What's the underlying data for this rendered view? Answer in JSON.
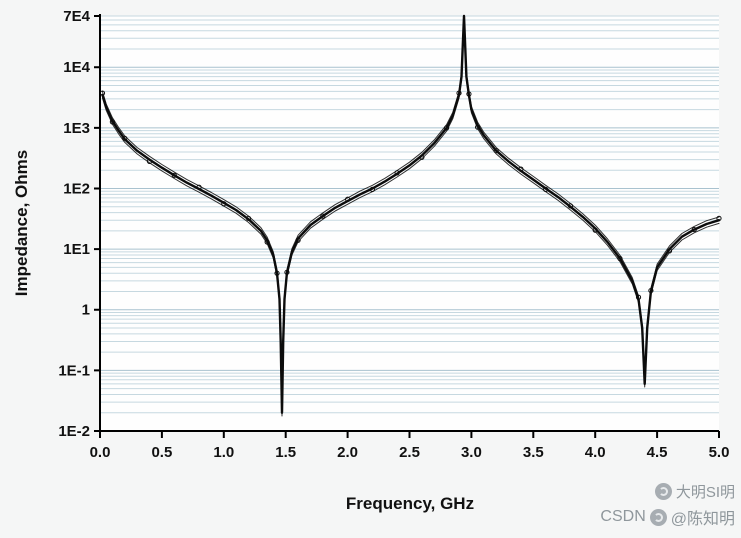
{
  "figure": {
    "y_axis_title": "Impedance, Ohms",
    "x_axis_title": "Frequency, GHz"
  },
  "watermarks": {
    "upper_text": "大明SI明",
    "lower_prefix": "CSDN",
    "lower_handle": "@陈知明"
  },
  "colors": {
    "curve": "#0c0c0c",
    "grid_minor": "#c6d8e0",
    "grid_major": "#a9c2cf",
    "axis": "#000000",
    "plot_background": "#fefefe",
    "watermark": "#8f979c"
  },
  "chart_data": {
    "type": "line",
    "title": "",
    "xlabel": "Frequency, GHz",
    "ylabel": "Impedance, Ohms",
    "xlim": [
      0,
      5
    ],
    "ylim": [
      0.01,
      70000
    ],
    "y_scale": "log",
    "grid": {
      "horizontal_minor": true,
      "vertical": false,
      "legend": "none"
    },
    "x_ticks": [
      {
        "v": 0.0,
        "label": "0.0"
      },
      {
        "v": 0.5,
        "label": "0.5"
      },
      {
        "v": 1.0,
        "label": "1.0"
      },
      {
        "v": 1.5,
        "label": "1.5"
      },
      {
        "v": 2.0,
        "label": "2.0"
      },
      {
        "v": 2.5,
        "label": "2.5"
      },
      {
        "v": 3.0,
        "label": "3.0"
      },
      {
        "v": 3.5,
        "label": "3.5"
      },
      {
        "v": 4.0,
        "label": "4.0"
      },
      {
        "v": 4.5,
        "label": "4.5"
      },
      {
        "v": 5.0,
        "label": "5.0"
      }
    ],
    "y_ticks": [
      {
        "v": 70000,
        "label": "7E4"
      },
      {
        "v": 10000,
        "label": "1E4"
      },
      {
        "v": 1000,
        "label": "1E3"
      },
      {
        "v": 100,
        "label": "1E2"
      },
      {
        "v": 10,
        "label": "1E1"
      },
      {
        "v": 1,
        "label": "1"
      },
      {
        "v": 0.1,
        "label": "1E-1"
      },
      {
        "v": 0.01,
        "label": "1E-2"
      }
    ],
    "features": {
      "series_resonance_nulls_GHz": [
        1.47,
        4.4
      ],
      "parallel_resonance_peak_GHz": 2.94,
      "peak_impedance_ohms": 70000,
      "null_impedance_ohms": [
        0.02,
        0.06
      ],
      "impedance_at_0GHz_ohms": 3500,
      "impedance_at_5GHz_ohms": 30
    },
    "series": [
      {
        "name": "impedance",
        "color": "#0c0c0c",
        "points": [
          [
            0.02,
            3500
          ],
          [
            0.05,
            2200
          ],
          [
            0.1,
            1300
          ],
          [
            0.15,
            900
          ],
          [
            0.2,
            650
          ],
          [
            0.3,
            420
          ],
          [
            0.4,
            300
          ],
          [
            0.5,
            220
          ],
          [
            0.6,
            165
          ],
          [
            0.7,
            125
          ],
          [
            0.8,
            98
          ],
          [
            0.9,
            76
          ],
          [
            1.0,
            58
          ],
          [
            1.1,
            44
          ],
          [
            1.2,
            31
          ],
          [
            1.3,
            20
          ],
          [
            1.35,
            14
          ],
          [
            1.4,
            8
          ],
          [
            1.43,
            4
          ],
          [
            1.45,
            1.5
          ],
          [
            1.46,
            0.3
          ],
          [
            1.47,
            0.02
          ],
          [
            1.48,
            0.3
          ],
          [
            1.49,
            1.5
          ],
          [
            1.51,
            4
          ],
          [
            1.55,
            9
          ],
          [
            1.6,
            15
          ],
          [
            1.7,
            25
          ],
          [
            1.8,
            35
          ],
          [
            1.9,
            48
          ],
          [
            2.0,
            62
          ],
          [
            2.1,
            80
          ],
          [
            2.2,
            100
          ],
          [
            2.3,
            130
          ],
          [
            2.4,
            175
          ],
          [
            2.5,
            240
          ],
          [
            2.6,
            350
          ],
          [
            2.7,
            560
          ],
          [
            2.8,
            1000
          ],
          [
            2.85,
            1600
          ],
          [
            2.9,
            3500
          ],
          [
            2.92,
            7000
          ],
          [
            2.94,
            70000
          ],
          [
            2.96,
            7000
          ],
          [
            2.98,
            3500
          ],
          [
            3.0,
            2000
          ],
          [
            3.05,
            1100
          ],
          [
            3.1,
            750
          ],
          [
            3.2,
            420
          ],
          [
            3.3,
            280
          ],
          [
            3.4,
            195
          ],
          [
            3.5,
            140
          ],
          [
            3.6,
            100
          ],
          [
            3.7,
            72
          ],
          [
            3.8,
            50
          ],
          [
            3.9,
            34
          ],
          [
            4.0,
            22
          ],
          [
            4.1,
            13
          ],
          [
            4.2,
            7
          ],
          [
            4.3,
            3
          ],
          [
            4.35,
            1.5
          ],
          [
            4.38,
            0.5
          ],
          [
            4.4,
            0.06
          ],
          [
            4.42,
            0.5
          ],
          [
            4.45,
            2
          ],
          [
            4.5,
            5
          ],
          [
            4.6,
            10
          ],
          [
            4.7,
            16
          ],
          [
            4.8,
            21
          ],
          [
            4.9,
            26
          ],
          [
            5.0,
            30
          ]
        ]
      }
    ]
  }
}
